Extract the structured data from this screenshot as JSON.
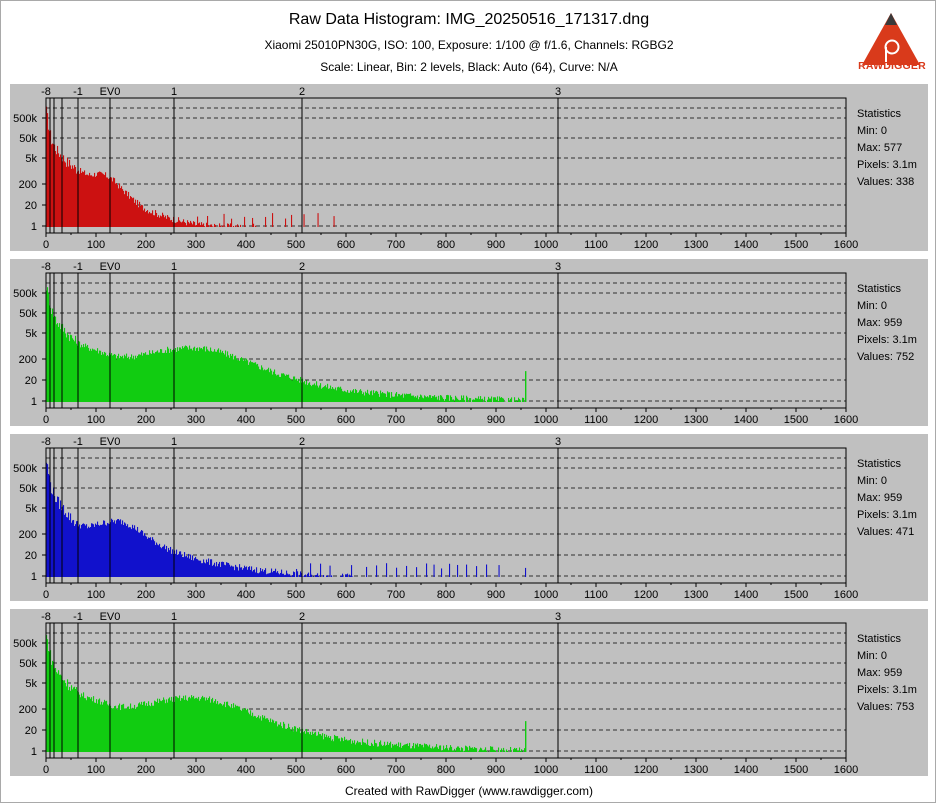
{
  "header": {
    "title": "Raw Data Histogram: IMG_20250516_171317.dng",
    "subtitle_camera": "Xiaomi 25010PN30G, ISO: 100, Exposure: 1/100 @ f/1.6, Channels: RGBG2",
    "subtitle_settings": "Scale: Linear, Bin: 2 levels, Black: Auto (64), Curve: N/A"
  },
  "logo": {
    "text": "RAWDIGGER",
    "icon": "rawdigger-triangle-logo",
    "color": "#d93a1b"
  },
  "footer": {
    "text": "Created with RawDigger (www.rawdigger.com)"
  },
  "chart_data": [
    {
      "type": "area",
      "channel": "R",
      "color": "#cc1111",
      "x_ticks": [
        "0",
        "100",
        "200",
        "300",
        "400",
        "500",
        "600",
        "700",
        "800",
        "900",
        "1000",
        "1100",
        "1200",
        "1300",
        "1400",
        "1500",
        "1600"
      ],
      "xlim": [
        0,
        1600
      ],
      "y_ticks": [
        "500k",
        "50k",
        "5k",
        "200",
        "20",
        "1"
      ],
      "ev_labels": [
        "-8",
        "-1",
        "EV0",
        "1",
        "2",
        "3"
      ],
      "ev_positions": [
        0,
        64,
        128,
        256,
        512,
        1024
      ],
      "max_value": 577,
      "profile": [
        [
          0,
          6.0
        ],
        [
          4,
          5.3
        ],
        [
          10,
          4.5
        ],
        [
          20,
          4.0
        ],
        [
          30,
          3.7
        ],
        [
          40,
          3.4
        ],
        [
          55,
          3.1
        ],
        [
          70,
          2.85
        ],
        [
          85,
          2.7
        ],
        [
          100,
          2.75
        ],
        [
          115,
          2.7
        ],
        [
          125,
          2.6
        ],
        [
          135,
          2.4
        ],
        [
          150,
          2.0
        ],
        [
          170,
          1.5
        ],
        [
          190,
          1.05
        ],
        [
          210,
          0.8
        ],
        [
          240,
          0.5
        ],
        [
          270,
          0.3
        ],
        [
          300,
          0.12
        ],
        [
          330,
          0.05
        ],
        [
          360,
          0.02
        ],
        [
          420,
          0.0
        ]
      ],
      "sparse_spikes": [
        302,
        322,
        355,
        370,
        396,
        412,
        438,
        452,
        478,
        490,
        515,
        543,
        575
      ],
      "statistics": {
        "heading": "Statistics",
        "min": "Min: 0",
        "max": "Max: 577",
        "pixels": "Pixels: 3.1m",
        "values": "Values: 338"
      }
    },
    {
      "type": "area",
      "channel": "G",
      "color": "#11cc11",
      "x_ticks": [
        "0",
        "100",
        "200",
        "300",
        "400",
        "500",
        "600",
        "700",
        "800",
        "900",
        "1000",
        "1100",
        "1200",
        "1300",
        "1400",
        "1500",
        "1600"
      ],
      "xlim": [
        0,
        1600
      ],
      "y_ticks": [
        "500k",
        "50k",
        "5k",
        "200",
        "20",
        "1"
      ],
      "ev_labels": [
        "-8",
        "-1",
        "EV0",
        "1",
        "2",
        "3"
      ],
      "ev_positions": [
        0,
        64,
        128,
        256,
        512,
        1024
      ],
      "max_value": 959,
      "profile": [
        [
          0,
          6.0
        ],
        [
          4,
          5.5
        ],
        [
          10,
          4.8
        ],
        [
          20,
          4.2
        ],
        [
          40,
          3.6
        ],
        [
          60,
          3.1
        ],
        [
          80,
          2.85
        ],
        [
          100,
          2.7
        ],
        [
          120,
          2.5
        ],
        [
          140,
          2.35
        ],
        [
          170,
          2.35
        ],
        [
          200,
          2.5
        ],
        [
          240,
          2.7
        ],
        [
          280,
          2.8
        ],
        [
          310,
          2.8
        ],
        [
          340,
          2.65
        ],
        [
          370,
          2.4
        ],
        [
          400,
          2.1
        ],
        [
          430,
          1.8
        ],
        [
          460,
          1.5
        ],
        [
          500,
          1.2
        ],
        [
          540,
          0.9
        ],
        [
          580,
          0.7
        ],
        [
          620,
          0.55
        ],
        [
          680,
          0.4
        ],
        [
          740,
          0.3
        ],
        [
          800,
          0.22
        ],
        [
          860,
          0.15
        ],
        [
          920,
          0.1
        ],
        [
          958,
          0.05
        ]
      ],
      "clip_spike": {
        "x": 958,
        "height": 1.6
      },
      "statistics": {
        "heading": "Statistics",
        "min": "Min: 0",
        "max": "Max: 959",
        "pixels": "Pixels: 3.1m",
        "values": "Values: 752"
      }
    },
    {
      "type": "area",
      "channel": "B",
      "color": "#1111cc",
      "x_ticks": [
        "0",
        "100",
        "200",
        "300",
        "400",
        "500",
        "600",
        "700",
        "800",
        "900",
        "1000",
        "1100",
        "1200",
        "1300",
        "1400",
        "1500",
        "1600"
      ],
      "xlim": [
        0,
        1600
      ],
      "y_ticks": [
        "500k",
        "50k",
        "5k",
        "200",
        "20",
        "1"
      ],
      "ev_labels": [
        "-8",
        "-1",
        "EV0",
        "1",
        "2",
        "3"
      ],
      "ev_positions": [
        0,
        64,
        128,
        256,
        512,
        1024
      ],
      "max_value": 959,
      "profile": [
        [
          0,
          6.0
        ],
        [
          4,
          5.4
        ],
        [
          10,
          4.6
        ],
        [
          20,
          4.0
        ],
        [
          35,
          3.5
        ],
        [
          50,
          3.0
        ],
        [
          65,
          2.7
        ],
        [
          85,
          2.6
        ],
        [
          105,
          2.75
        ],
        [
          125,
          2.85
        ],
        [
          145,
          2.9
        ],
        [
          160,
          2.8
        ],
        [
          180,
          2.5
        ],
        [
          200,
          2.1
        ],
        [
          225,
          1.7
        ],
        [
          255,
          1.3
        ],
        [
          290,
          1.0
        ],
        [
          330,
          0.75
        ],
        [
          370,
          0.55
        ],
        [
          410,
          0.4
        ],
        [
          450,
          0.28
        ],
        [
          490,
          0.17
        ],
        [
          520,
          0.08
        ],
        [
          560,
          0.03
        ],
        [
          620,
          0.0
        ]
      ],
      "sparse_spikes": [
        500,
        528,
        548,
        567,
        610,
        640,
        660,
        680,
        700,
        720,
        740,
        760,
        775,
        790,
        806,
        822,
        840,
        860,
        880,
        905,
        958
      ],
      "statistics": {
        "heading": "Statistics",
        "min": "Min: 0",
        "max": "Max: 959",
        "pixels": "Pixels: 3.1m",
        "values": "Values: 471"
      }
    },
    {
      "type": "area",
      "channel": "G2",
      "color": "#11cc11",
      "x_ticks": [
        "0",
        "100",
        "200",
        "300",
        "400",
        "500",
        "600",
        "700",
        "800",
        "900",
        "1000",
        "1100",
        "1200",
        "1300",
        "1400",
        "1500",
        "1600"
      ],
      "xlim": [
        0,
        1600
      ],
      "y_ticks": [
        "500k",
        "50k",
        "5k",
        "200",
        "20",
        "1"
      ],
      "ev_labels": [
        "-8",
        "-1",
        "EV0",
        "1",
        "2",
        "3"
      ],
      "ev_positions": [
        0,
        64,
        128,
        256,
        512,
        1024
      ],
      "max_value": 959,
      "profile": [
        [
          0,
          6.0
        ],
        [
          4,
          5.5
        ],
        [
          10,
          4.8
        ],
        [
          20,
          4.2
        ],
        [
          40,
          3.6
        ],
        [
          60,
          3.1
        ],
        [
          80,
          2.85
        ],
        [
          100,
          2.7
        ],
        [
          120,
          2.5
        ],
        [
          140,
          2.35
        ],
        [
          170,
          2.35
        ],
        [
          200,
          2.5
        ],
        [
          240,
          2.7
        ],
        [
          280,
          2.8
        ],
        [
          310,
          2.8
        ],
        [
          340,
          2.65
        ],
        [
          370,
          2.4
        ],
        [
          400,
          2.1
        ],
        [
          430,
          1.8
        ],
        [
          460,
          1.5
        ],
        [
          500,
          1.2
        ],
        [
          540,
          0.9
        ],
        [
          580,
          0.7
        ],
        [
          620,
          0.55
        ],
        [
          680,
          0.4
        ],
        [
          740,
          0.3
        ],
        [
          800,
          0.22
        ],
        [
          860,
          0.15
        ],
        [
          920,
          0.1
        ],
        [
          958,
          0.05
        ]
      ],
      "clip_spike": {
        "x": 958,
        "height": 1.6
      },
      "statistics": {
        "heading": "Statistics",
        "min": "Min: 0",
        "max": "Max: 959",
        "pixels": "Pixels: 3.1m",
        "values": "Values: 753"
      }
    }
  ]
}
